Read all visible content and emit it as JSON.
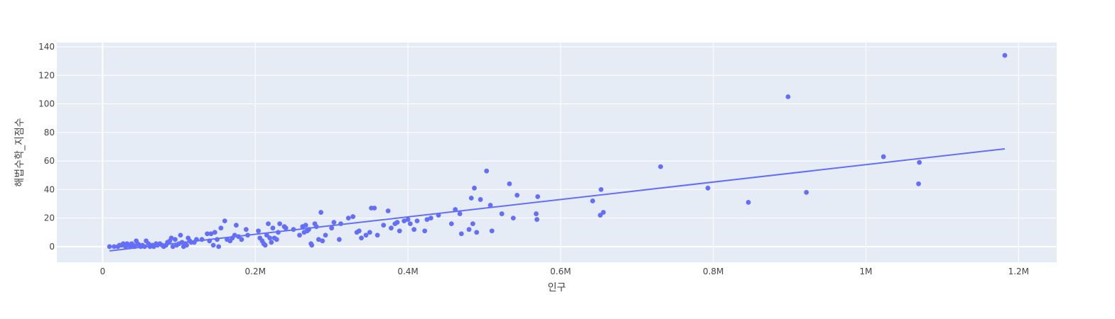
{
  "chart_data": {
    "type": "scatter",
    "xlabel": "인구",
    "ylabel": "해법수학_지점수",
    "xlim": [
      -60000,
      1250000
    ],
    "ylim": [
      -11,
      143
    ],
    "x_ticks": [
      {
        "value": 0,
        "label": "0"
      },
      {
        "value": 200000,
        "label": "0.2M"
      },
      {
        "value": 400000,
        "label": "0.4M"
      },
      {
        "value": 600000,
        "label": "0.6M"
      },
      {
        "value": 800000,
        "label": "0.8M"
      },
      {
        "value": 1000000,
        "label": "1M"
      },
      {
        "value": 1200000,
        "label": "1.2M"
      }
    ],
    "y_ticks": [
      {
        "value": 0,
        "label": "0"
      },
      {
        "value": 20,
        "label": "20"
      },
      {
        "value": 40,
        "label": "40"
      },
      {
        "value": 60,
        "label": "60"
      },
      {
        "value": 80,
        "label": "80"
      },
      {
        "value": 100,
        "label": "100"
      },
      {
        "value": 120,
        "label": "120"
      },
      {
        "value": 140,
        "label": "140"
      }
    ],
    "grid": true,
    "colors": {
      "marker": "#636efa",
      "plot_bg": "#e5ecf6",
      "grid": "#ffffff"
    },
    "series": [
      {
        "mode": "markers",
        "points": [
          [
            9000,
            0
          ],
          [
            15000,
            0
          ],
          [
            20000,
            0
          ],
          [
            22000,
            1
          ],
          [
            25000,
            1
          ],
          [
            27000,
            2
          ],
          [
            30000,
            0
          ],
          [
            32000,
            2
          ],
          [
            34000,
            1
          ],
          [
            36000,
            0
          ],
          [
            38000,
            2
          ],
          [
            40000,
            1
          ],
          [
            42000,
            0
          ],
          [
            44000,
            4
          ],
          [
            46000,
            2
          ],
          [
            48000,
            1
          ],
          [
            50000,
            0
          ],
          [
            52000,
            1
          ],
          [
            55000,
            0
          ],
          [
            57000,
            4
          ],
          [
            60000,
            2
          ],
          [
            62000,
            0
          ],
          [
            65000,
            1
          ],
          [
            67000,
            0
          ],
          [
            70000,
            2
          ],
          [
            72000,
            1
          ],
          [
            75000,
            2
          ],
          [
            78000,
            1
          ],
          [
            80000,
            0
          ],
          [
            83000,
            1
          ],
          [
            85000,
            3
          ],
          [
            88000,
            4
          ],
          [
            90000,
            6
          ],
          [
            92000,
            0
          ],
          [
            95000,
            5
          ],
          [
            97000,
            1
          ],
          [
            100000,
            2
          ],
          [
            102000,
            8
          ],
          [
            104000,
            3
          ],
          [
            106000,
            0
          ],
          [
            108000,
            2
          ],
          [
            110000,
            1
          ],
          [
            112000,
            6
          ],
          [
            114000,
            4
          ],
          [
            116000,
            3
          ],
          [
            120000,
            3
          ],
          [
            123000,
            5
          ],
          [
            130000,
            5
          ],
          [
            137000,
            9
          ],
          [
            140000,
            4
          ],
          [
            142000,
            9
          ],
          [
            145000,
            1
          ],
          [
            147000,
            10
          ],
          [
            150000,
            5
          ],
          [
            152000,
            0
          ],
          [
            155000,
            13
          ],
          [
            160000,
            18
          ],
          [
            163000,
            5
          ],
          [
            167000,
            4
          ],
          [
            170000,
            6
          ],
          [
            173000,
            8
          ],
          [
            175000,
            15
          ],
          [
            178000,
            7
          ],
          [
            182000,
            5
          ],
          [
            188000,
            12
          ],
          [
            190000,
            8
          ],
          [
            204000,
            11
          ],
          [
            206000,
            6
          ],
          [
            209000,
            4
          ],
          [
            211000,
            2
          ],
          [
            213000,
            1
          ],
          [
            215000,
            8
          ],
          [
            217000,
            16
          ],
          [
            219000,
            6
          ],
          [
            221000,
            3
          ],
          [
            223000,
            13
          ],
          [
            225000,
            6
          ],
          [
            228000,
            5
          ],
          [
            230000,
            10
          ],
          [
            232000,
            16
          ],
          [
            238000,
            14
          ],
          [
            240000,
            13
          ],
          [
            250000,
            12
          ],
          [
            258000,
            8
          ],
          [
            262000,
            14
          ],
          [
            264000,
            10
          ],
          [
            266000,
            15
          ],
          [
            268000,
            11
          ],
          [
            270000,
            12
          ],
          [
            273000,
            2
          ],
          [
            274000,
            1
          ],
          [
            278000,
            16
          ],
          [
            280000,
            14
          ],
          [
            283000,
            5
          ],
          [
            286000,
            24
          ],
          [
            288000,
            4
          ],
          [
            292000,
            8
          ],
          [
            300000,
            13
          ],
          [
            303000,
            17
          ],
          [
            310000,
            5
          ],
          [
            312000,
            16
          ],
          [
            322000,
            20
          ],
          [
            328000,
            21
          ],
          [
            333000,
            10
          ],
          [
            336000,
            11
          ],
          [
            339000,
            6
          ],
          [
            345000,
            8
          ],
          [
            350000,
            10
          ],
          [
            352000,
            27
          ],
          [
            356000,
            27
          ],
          [
            360000,
            8
          ],
          [
            368000,
            15
          ],
          [
            374000,
            25
          ],
          [
            378000,
            13
          ],
          [
            383000,
            16
          ],
          [
            386000,
            17
          ],
          [
            389000,
            11
          ],
          [
            395000,
            18
          ],
          [
            400000,
            19
          ],
          [
            403000,
            16
          ],
          [
            408000,
            12
          ],
          [
            412000,
            18
          ],
          [
            422000,
            11
          ],
          [
            425000,
            19
          ],
          [
            430000,
            20
          ],
          [
            440000,
            22
          ],
          [
            457000,
            16
          ],
          [
            462000,
            26
          ],
          [
            468000,
            23
          ],
          [
            470000,
            9
          ],
          [
            480000,
            12
          ],
          [
            483000,
            34
          ],
          [
            485000,
            16
          ],
          [
            487000,
            41
          ],
          [
            490000,
            10
          ],
          [
            495000,
            33
          ],
          [
            503000,
            53
          ],
          [
            508000,
            29
          ],
          [
            510000,
            11
          ],
          [
            523000,
            23
          ],
          [
            533000,
            44
          ],
          [
            538000,
            20
          ],
          [
            543000,
            36
          ],
          [
            568000,
            23
          ],
          [
            569000,
            19
          ],
          [
            570000,
            35
          ],
          [
            642000,
            32
          ],
          [
            653000,
            40
          ],
          [
            652000,
            22
          ],
          [
            656000,
            24
          ],
          [
            731000,
            56
          ],
          [
            793000,
            41
          ],
          [
            846000,
            31
          ],
          [
            898000,
            105
          ],
          [
            922000,
            38
          ],
          [
            1023000,
            63
          ],
          [
            1070000,
            59
          ],
          [
            1069000,
            44
          ],
          [
            1182000,
            134
          ]
        ]
      },
      {
        "mode": "lines",
        "points": [
          [
            9000,
            -3
          ],
          [
            1182000,
            68.5
          ]
        ]
      }
    ]
  }
}
